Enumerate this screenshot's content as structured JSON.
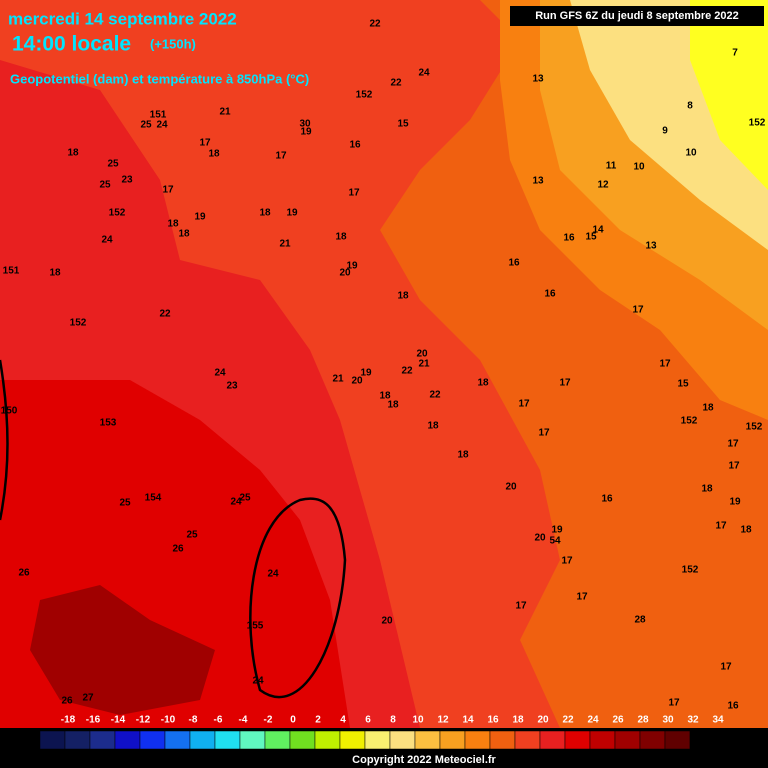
{
  "header": {
    "date": "mercredi 14 septembre 2022",
    "time": "14:00 locale",
    "lead": "(+150h)",
    "field": "Geopotentiel (dam) et température à 850hPa (°C)",
    "run": "Run GFS 6Z du jeudi 8 septembre 2022"
  },
  "map": {
    "labels": [
      22,
      24,
      22,
      152,
      13,
      7,
      8,
      152,
      9,
      10,
      11,
      10,
      12,
      13,
      151,
      25,
      24,
      21,
      30,
      19,
      15,
      18,
      17,
      18,
      17,
      16,
      25,
      23,
      25,
      17,
      152,
      17,
      18,
      19,
      18,
      19,
      18,
      24,
      21,
      18,
      16,
      14,
      15,
      13,
      151,
      18,
      19,
      20,
      16,
      16,
      18,
      22,
      152,
      17,
      17,
      20,
      21,
      22,
      24,
      23,
      21,
      19,
      20,
      18,
      17,
      15,
      18,
      18,
      22,
      150,
      153,
      18,
      17,
      17,
      152,
      18,
      17,
      152,
      18,
      17,
      20,
      25,
      154,
      24,
      25,
      18,
      19,
      16,
      25,
      26,
      20,
      19,
      54,
      17,
      17,
      18,
      26,
      24,
      152,
      17,
      17,
      155,
      20,
      28,
      24,
      26,
      27,
      17,
      17,
      16
    ]
  },
  "legend": {
    "ticks": [
      -18,
      -16,
      -14,
      -12,
      -10,
      -8,
      -6,
      -4,
      -2,
      0,
      2,
      4,
      6,
      8,
      10,
      12,
      14,
      16,
      18,
      20,
      22,
      24,
      26,
      28,
      30,
      32,
      34
    ],
    "colors": [
      "#0c1450",
      "#142064",
      "#1c2c8c",
      "#1010c8",
      "#1030f0",
      "#1470f0",
      "#10b0f0",
      "#20e0f0",
      "#60f8c0",
      "#60f060",
      "#70e020",
      "#c0f000",
      "#f0f000",
      "#f8f070",
      "#fce080",
      "#fcc040",
      "#f8a020",
      "#f88010",
      "#f06010",
      "#f04020",
      "#e82020",
      "#e00000",
      "#c00000",
      "#a00000",
      "#800000",
      "#600000",
      "#000000"
    ]
  },
  "footer": {
    "copyright": "Copyright 2022 Meteociel.fr"
  }
}
